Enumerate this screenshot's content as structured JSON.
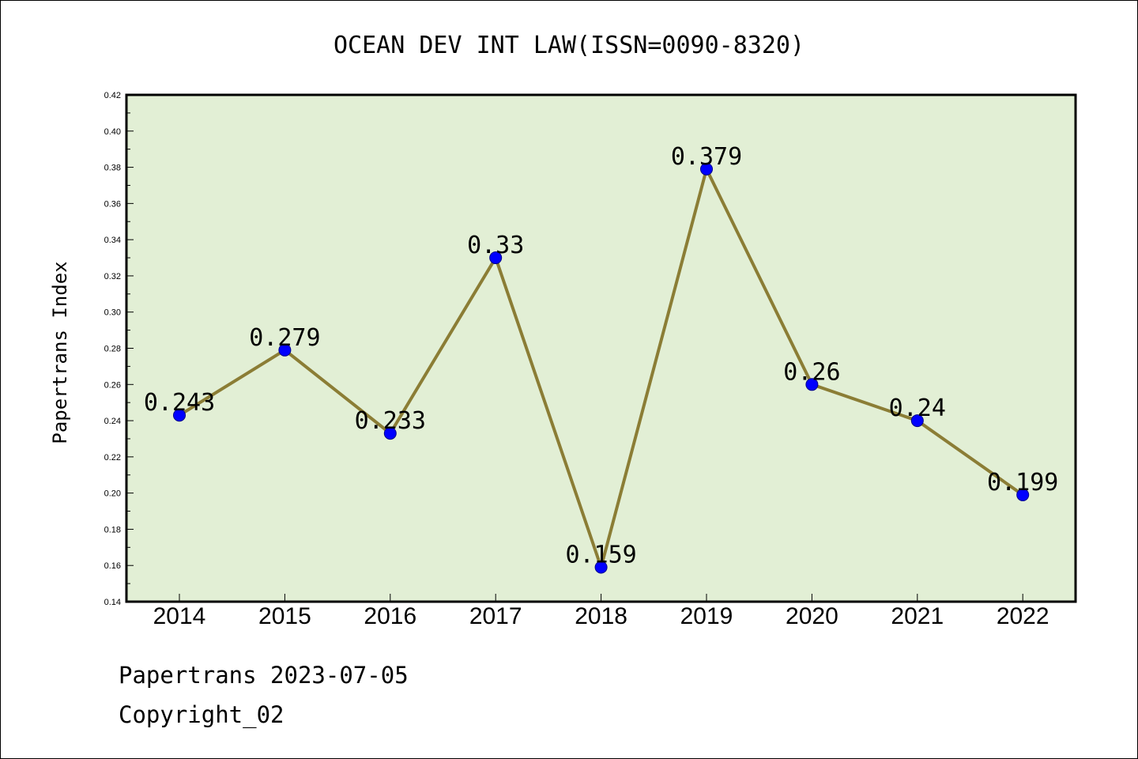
{
  "chart_data": {
    "type": "line",
    "title": "OCEAN DEV INT LAW(ISSN=0090-8320)",
    "ylabel": "Papertrans Index",
    "xlabel": "",
    "categories": [
      "2014",
      "2015",
      "2016",
      "2017",
      "2018",
      "2019",
      "2020",
      "2021",
      "2022"
    ],
    "values": [
      0.243,
      0.279,
      0.233,
      0.33,
      0.159,
      0.379,
      0.26,
      0.24,
      0.199
    ],
    "data_labels": [
      "0.243",
      "0.279",
      "0.233",
      "0.33",
      "0.159",
      "0.379",
      "0.26",
      "0.24",
      "0.199"
    ],
    "ylim": [
      0.14,
      0.42
    ],
    "yticks": [
      "0.14",
      "0.16",
      "0.18",
      "0.20",
      "0.22",
      "0.24",
      "0.26",
      "0.28",
      "0.30",
      "0.32",
      "0.34",
      "0.36",
      "0.38",
      "0.40",
      "0.42"
    ],
    "grid": false,
    "legend": "none",
    "colors": {
      "plot_background": "#e2efd5",
      "line": "#8b7d35",
      "marker": "#0000ff"
    }
  },
  "footer": {
    "line1": "Papertrans 2023-07-05",
    "line2": "Copyright_02"
  }
}
